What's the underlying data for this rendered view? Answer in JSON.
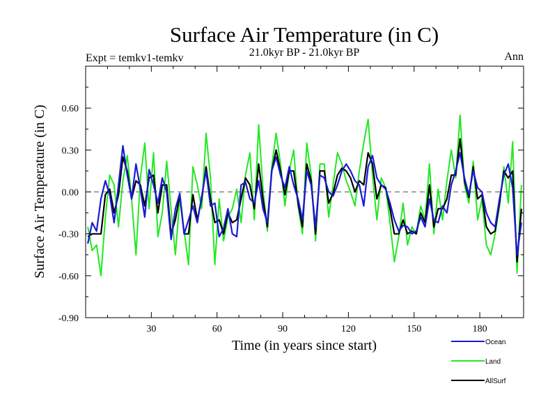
{
  "chart_data": {
    "type": "line",
    "title": "Surface Air Temperature (in C)",
    "subtitle": "21.0kyr BP - 21.0kyr BP",
    "left_label": "Expt = temkv1-temkv",
    "right_label": "Ann",
    "xlabel": "Time (in years since start)",
    "ylabel": "Surface Air Temperature (in C)",
    "xlim": [
      0,
      200
    ],
    "ylim": [
      -0.9,
      0.9
    ],
    "xticks": [
      30,
      60,
      90,
      120,
      150,
      180
    ],
    "yticks": [
      -0.9,
      -0.6,
      -0.3,
      0.0,
      0.3,
      0.6
    ],
    "ytick_labels": [
      "-0.90",
      "-0.60",
      "-0.30",
      "0.00",
      "0.30",
      "0.60"
    ],
    "reference_line": {
      "y": 0.0,
      "style": "dashed",
      "color": "#555555"
    },
    "legend_position": "bottom-right",
    "x": [
      1,
      3,
      5,
      7,
      9,
      11,
      13,
      15,
      17,
      19,
      21,
      23,
      25,
      27,
      29,
      31,
      33,
      35,
      37,
      39,
      41,
      43,
      45,
      47,
      49,
      51,
      53,
      55,
      57,
      59,
      61,
      63,
      65,
      67,
      69,
      71,
      73,
      75,
      77,
      79,
      81,
      83,
      85,
      87,
      89,
      91,
      93,
      95,
      97,
      99,
      101,
      103,
      105,
      107,
      109,
      111,
      113,
      115,
      117,
      119,
      121,
      123,
      125,
      127,
      129,
      131,
      133,
      135,
      137,
      139,
      141,
      143,
      145,
      147,
      149,
      151,
      153,
      155,
      157,
      159,
      161,
      163,
      165,
      167,
      169,
      171,
      173,
      175,
      177,
      179,
      181,
      183,
      185,
      187,
      189,
      191,
      193,
      195,
      197,
      199
    ],
    "series": [
      {
        "name": "Ocean",
        "color": "#1a1ad6",
        "values": [
          -0.37,
          -0.22,
          -0.28,
          -0.05,
          0.08,
          -0.02,
          -0.22,
          0.05,
          0.33,
          0.12,
          -0.05,
          0.2,
          0.02,
          -0.18,
          0.16,
          0.05,
          -0.08,
          0.1,
          0.0,
          -0.34,
          -0.12,
          -0.01,
          -0.3,
          -0.2,
          -0.1,
          -0.22,
          -0.03,
          0.15,
          -0.1,
          -0.08,
          -0.32,
          -0.26,
          -0.12,
          -0.3,
          -0.32,
          0.05,
          0.07,
          -0.05,
          -0.08,
          0.08,
          -0.12,
          -0.22,
          0.15,
          0.25,
          0.12,
          0.03,
          0.18,
          0.05,
          -0.05,
          -0.2,
          0.15,
          0.05,
          -0.25,
          0.12,
          0.1,
          0.0,
          -0.03,
          0.05,
          0.15,
          0.2,
          0.15,
          0.08,
          0.05,
          -0.1,
          0.18,
          0.26,
          0.1,
          0.05,
          0.02,
          -0.08,
          -0.2,
          -0.28,
          -0.24,
          -0.25,
          -0.3,
          -0.28,
          -0.18,
          -0.25,
          -0.05,
          -0.2,
          -0.22,
          -0.1,
          -0.15,
          0.05,
          0.15,
          0.28,
          0.1,
          -0.02,
          0.15,
          0.03,
          0.0,
          -0.15,
          -0.22,
          -0.25,
          -0.05,
          0.12,
          0.2,
          0.03,
          -0.45,
          -0.22
        ]
      },
      {
        "name": "Land",
        "color": "#22e822",
        "values": [
          -0.25,
          -0.42,
          -0.38,
          -0.6,
          -0.18,
          0.12,
          0.05,
          -0.25,
          0.08,
          0.26,
          -0.05,
          -0.45,
          0.1,
          0.35,
          -0.12,
          0.28,
          -0.32,
          -0.15,
          0.22,
          -0.12,
          -0.45,
          -0.05,
          -0.28,
          -0.52,
          0.18,
          0.05,
          -0.12,
          0.42,
          0.1,
          -0.52,
          -0.05,
          -0.35,
          -0.18,
          -0.12,
          0.02,
          -0.22,
          0.12,
          0.28,
          -0.2,
          0.48,
          0.02,
          -0.28,
          0.18,
          0.42,
          0.2,
          -0.1,
          0.15,
          0.3,
          -0.1,
          -0.3,
          0.35,
          0.12,
          -0.35,
          0.2,
          0.2,
          -0.18,
          0.05,
          0.28,
          0.2,
          0.08,
          0.0,
          -0.1,
          0.15,
          0.35,
          0.52,
          0.12,
          -0.2,
          0.1,
          0.03,
          -0.22,
          -0.5,
          -0.32,
          -0.08,
          -0.38,
          -0.25,
          -0.3,
          -0.1,
          -0.2,
          0.2,
          -0.3,
          0.02,
          -0.2,
          0.08,
          0.3,
          0.1,
          0.55,
          0.05,
          -0.08,
          0.22,
          -0.2,
          -0.05,
          -0.38,
          -0.45,
          -0.3,
          -0.1,
          0.18,
          -0.08,
          0.36,
          -0.58,
          0.05
        ]
      },
      {
        "name": "AllSurf",
        "color": "#000000",
        "values": [
          -0.32,
          -0.3,
          -0.3,
          -0.3,
          -0.02,
          0.02,
          -0.15,
          -0.02,
          0.25,
          0.15,
          -0.05,
          0.08,
          0.05,
          -0.1,
          0.1,
          0.12,
          -0.15,
          0.05,
          0.05,
          -0.3,
          -0.2,
          -0.02,
          -0.3,
          -0.3,
          -0.02,
          -0.2,
          -0.05,
          0.18,
          -0.05,
          -0.22,
          -0.2,
          -0.3,
          -0.15,
          -0.22,
          -0.2,
          -0.05,
          0.1,
          0.05,
          -0.12,
          0.2,
          -0.05,
          -0.25,
          0.15,
          0.3,
          0.15,
          -0.02,
          0.15,
          0.15,
          -0.08,
          -0.25,
          0.2,
          0.08,
          -0.3,
          0.15,
          0.15,
          -0.08,
          -0.01,
          0.12,
          0.17,
          0.15,
          0.1,
          0.0,
          0.08,
          0.05,
          0.28,
          0.2,
          -0.05,
          0.05,
          0.03,
          -0.12,
          -0.3,
          -0.3,
          -0.2,
          -0.3,
          -0.28,
          -0.3,
          -0.15,
          -0.22,
          0.05,
          -0.25,
          -0.12,
          -0.12,
          -0.05,
          0.12,
          0.12,
          0.38,
          0.08,
          -0.04,
          0.18,
          -0.05,
          -0.02,
          -0.25,
          -0.3,
          -0.28,
          -0.08,
          0.15,
          0.1,
          0.15,
          -0.5,
          -0.12
        ]
      }
    ]
  }
}
